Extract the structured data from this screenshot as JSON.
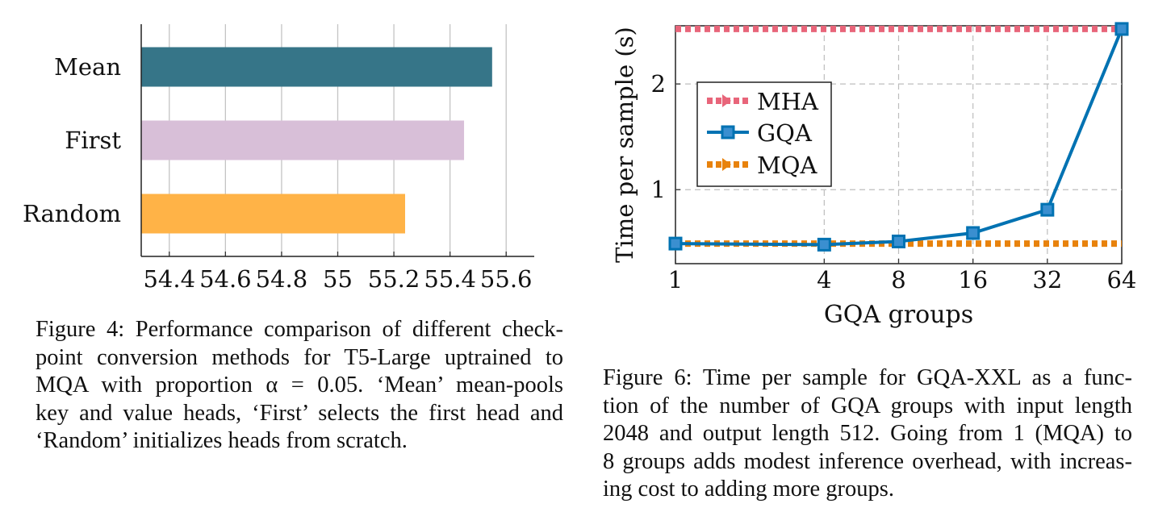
{
  "chart_data": [
    {
      "type": "bar",
      "orientation": "horizontal",
      "categories": [
        "Mean",
        "First",
        "Random"
      ],
      "values": [
        55.55,
        55.45,
        55.24
      ],
      "colors": [
        "#367588",
        "#d8bfd8",
        "#ffb347"
      ],
      "xlim": [
        54.3,
        55.7
      ],
      "xticks": [
        "54.4",
        "54.6",
        "54.8",
        "55",
        "55.2",
        "55.4",
        "55.6"
      ],
      "grid": "vertical",
      "title": "",
      "xlabel": "",
      "ylabel": ""
    },
    {
      "type": "line",
      "xscale": "log2",
      "xlabel": "GQA groups",
      "ylabel": "Time per sample (s)",
      "xlim": [
        1,
        64
      ],
      "ylim": [
        0.3,
        2.55
      ],
      "xticks": [
        "1",
        "4",
        "8",
        "16",
        "32",
        "64"
      ],
      "yticks": [
        "1",
        "2"
      ],
      "grid": true,
      "legend_position": "upper-left",
      "series": [
        {
          "name": "MHA",
          "x": [
            1,
            64
          ],
          "y": [
            2.52,
            2.52
          ],
          "style": "dotted",
          "color": "#e8657a"
        },
        {
          "name": "GQA",
          "x": [
            1,
            4,
            8,
            16,
            32,
            64
          ],
          "y": [
            0.49,
            0.48,
            0.51,
            0.59,
            0.81,
            2.52
          ],
          "style": "solid-square-marker",
          "color": "#0072b2"
        },
        {
          "name": "MQA",
          "x": [
            1,
            64
          ],
          "y": [
            0.49,
            0.49
          ],
          "style": "dotted",
          "color": "#e8820c"
        }
      ]
    }
  ],
  "captions": {
    "fig4": [
      "Figure 4: Performance comparison of different check-",
      "point conversion methods for T5-Large uptrained to",
      "MQA with proportion α = 0.05. ‘Mean’ mean-pools",
      "key and value heads, ‘First’ selects the first head and",
      "‘Random’ initializes heads from scratch."
    ],
    "fig6": [
      "Figure 6: Time per sample for GQA-XXL as a func-",
      "tion of the number of GQA groups with input length",
      "2048 and output length 512. Going from 1 (MQA) to",
      "8 groups adds modest inference overhead, with increas-",
      "ing cost to adding more groups."
    ]
  }
}
